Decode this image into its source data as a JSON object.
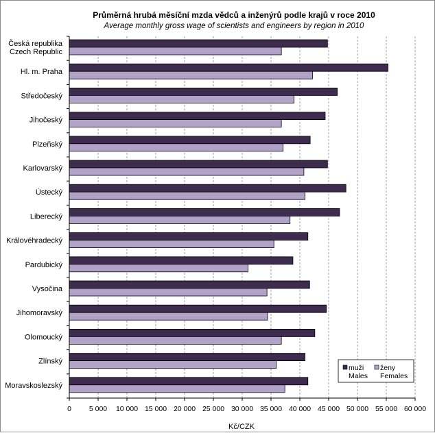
{
  "chart_data": {
    "type": "bar",
    "orientation": "horizontal",
    "title": "Průměrná hrubá měsíční mzda vědců a inženýrů podle krajů v roce 2010",
    "subtitle": "Average monthly gross wage of scientists and engineers by region in 2010",
    "xlabel": "Kč/CZK",
    "ylabel": "",
    "xlim": [
      0,
      60000
    ],
    "xticks": [
      0,
      5000,
      10000,
      15000,
      20000,
      25000,
      30000,
      35000,
      40000,
      45000,
      50000,
      55000,
      60000
    ],
    "xtick_labels": [
      "0",
      "5 000",
      "10 000",
      "15 000",
      "20 000",
      "25 000",
      "30 000",
      "35 000",
      "40 000",
      "45 000",
      "50 000",
      "55 000",
      "60 000"
    ],
    "grid": "vertical dashed",
    "legend_position": "bottom-right",
    "categories": [
      [
        "Česká republika",
        "Czech Republic"
      ],
      [
        "Hl. m. Praha"
      ],
      [
        "Středočeský"
      ],
      [
        "Jihočeský"
      ],
      [
        "Plzeňský"
      ],
      [
        "Karlovarský"
      ],
      [
        "Ústecký"
      ],
      [
        "Liberecký"
      ],
      [
        "Královéhradecký"
      ],
      [
        "Pardubický"
      ],
      [
        "Vysočina"
      ],
      [
        "Jihomoravský"
      ],
      [
        "Olomoucký"
      ],
      [
        "Zlínský"
      ],
      [
        "Moravskoslezský"
      ]
    ],
    "series": [
      {
        "name": "muži Males",
        "legend_lines": [
          "muži",
          "Males"
        ],
        "color": "#3d2c4e",
        "values": [
          44800,
          55300,
          46500,
          44400,
          41800,
          44800,
          48000,
          46900,
          41400,
          38800,
          41700,
          44600,
          42600,
          40900,
          41400
        ]
      },
      {
        "name": "ženy Females",
        "legend_lines": [
          "ženy",
          "Females"
        ],
        "color": "#b3a2c8",
        "values": [
          36800,
          42200,
          39000,
          36800,
          37100,
          40700,
          40900,
          38300,
          35500,
          31000,
          34300,
          34400,
          36800,
          35900,
          37400
        ]
      }
    ]
  }
}
